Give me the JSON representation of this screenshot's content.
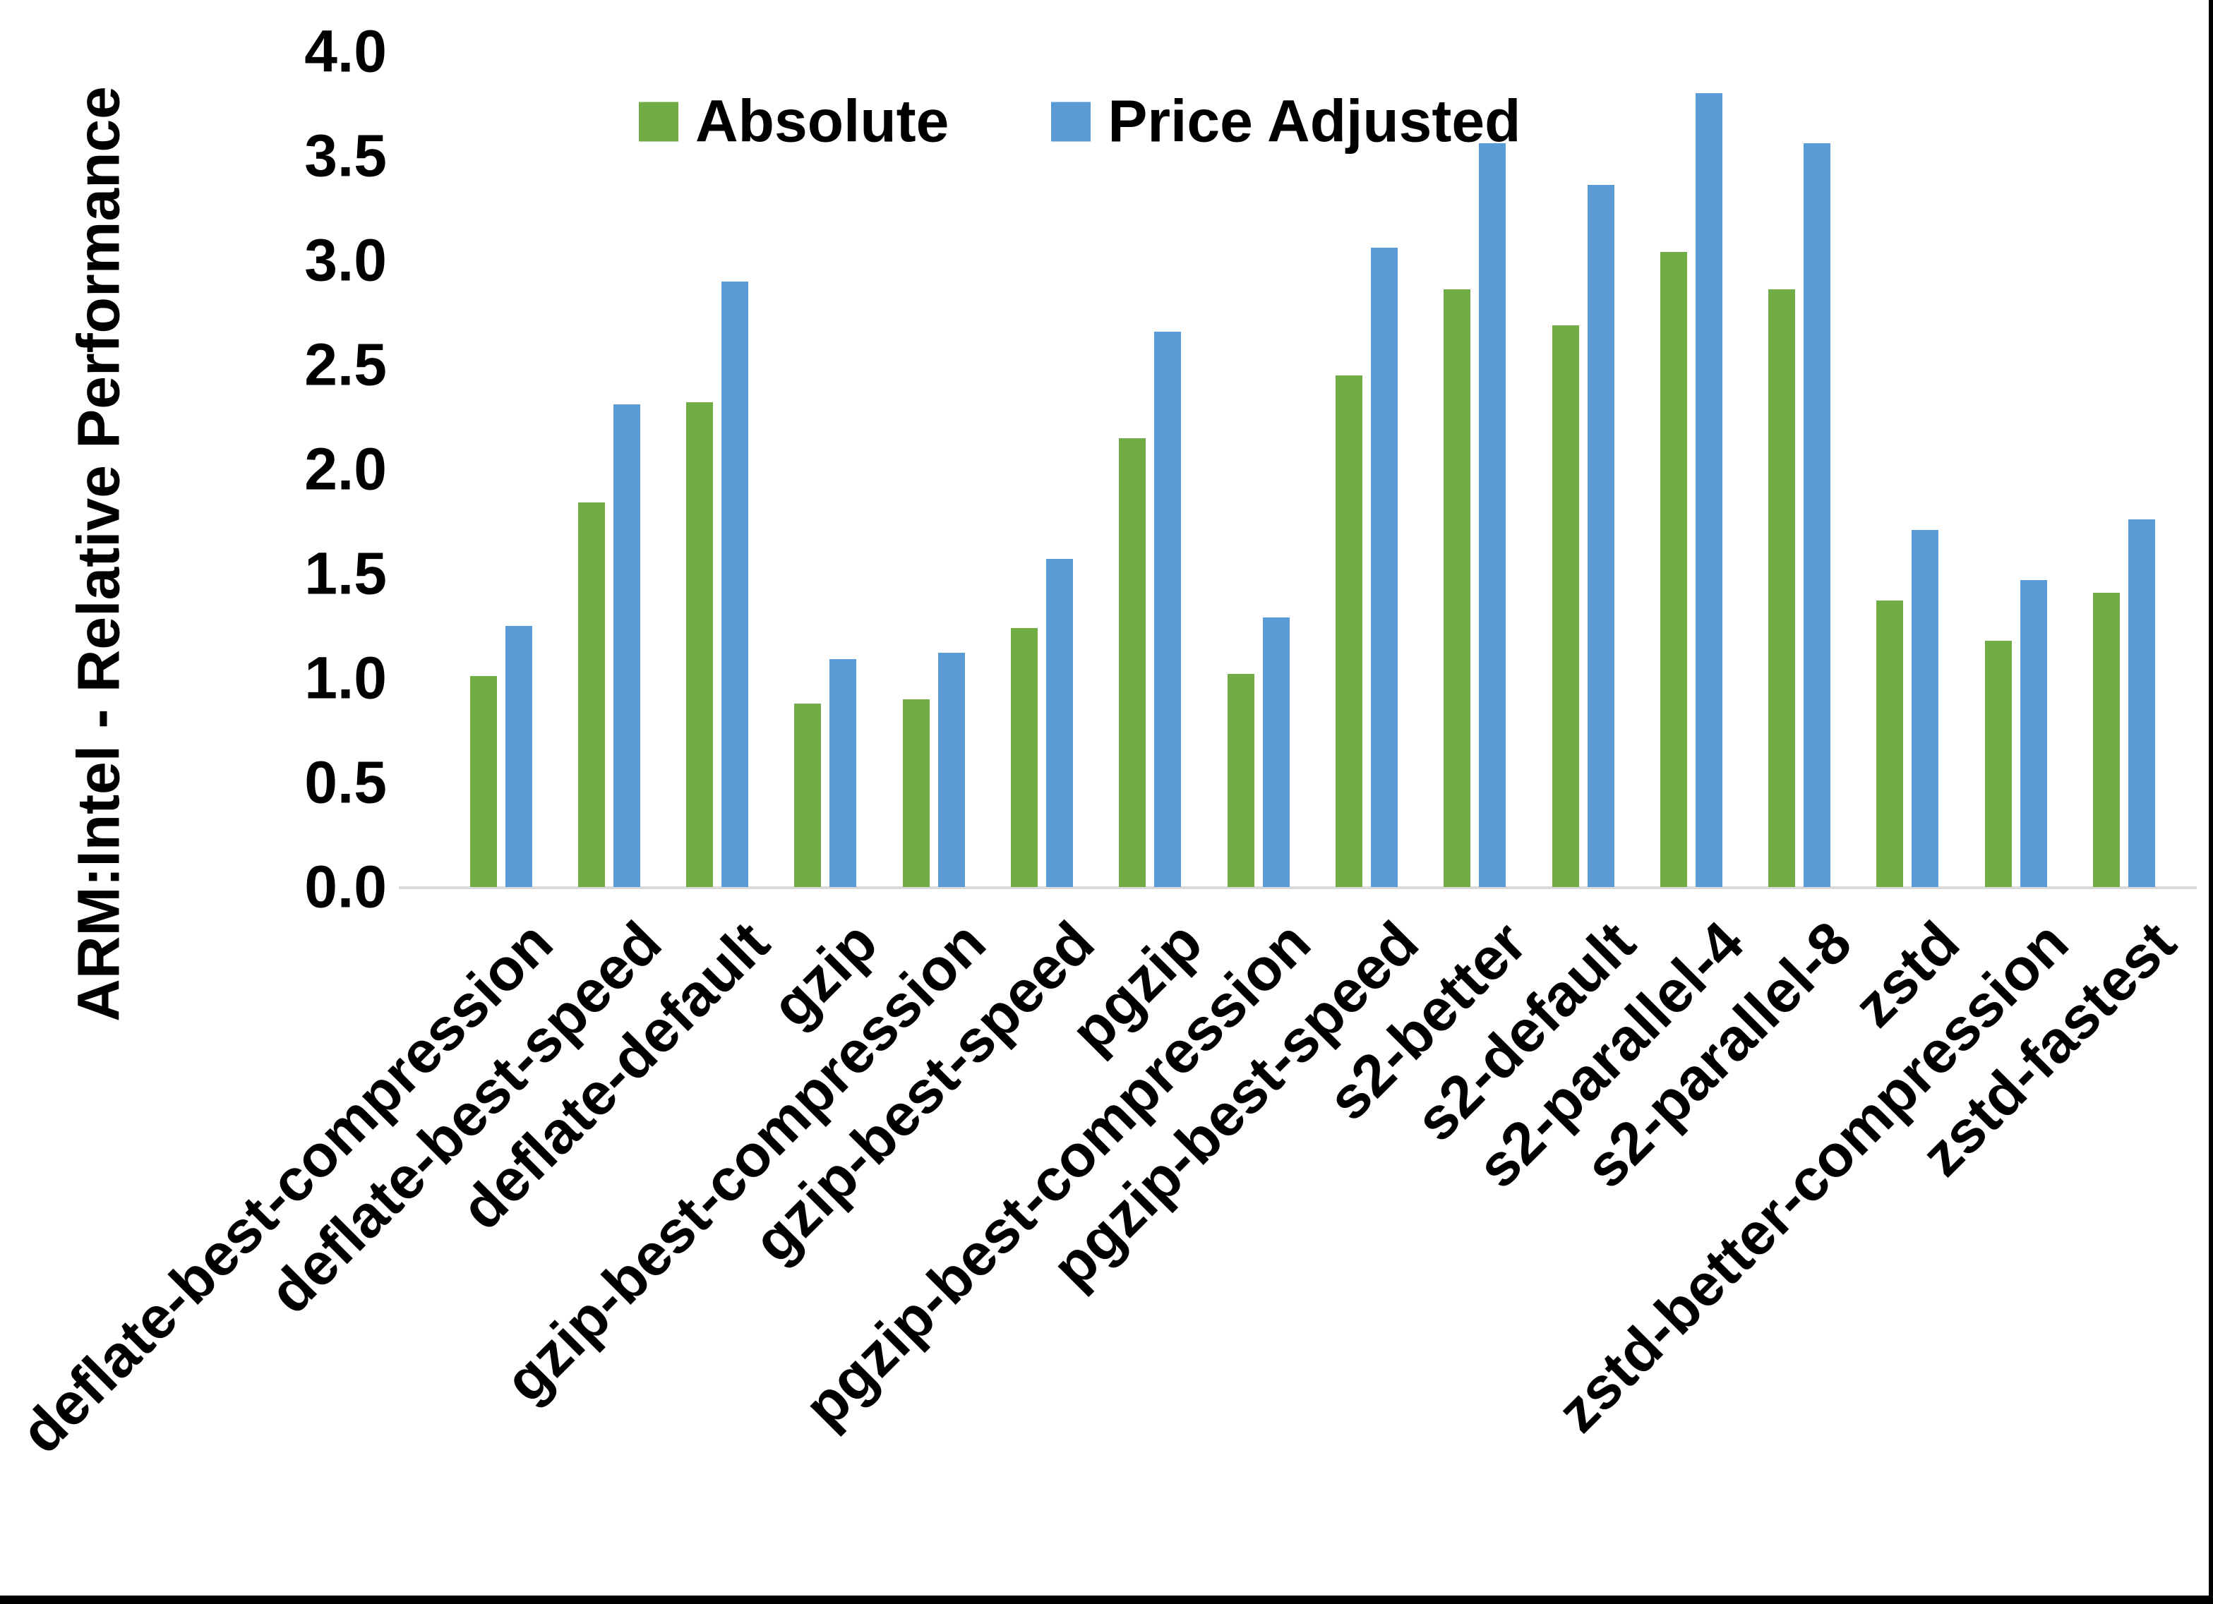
{
  "y_axis": {
    "title": "ARM:Intel - Relative Performance",
    "tick_labels": [
      "0.0",
      "0.5",
      "1.0",
      "1.5",
      "2.0",
      "2.5",
      "3.0",
      "3.5",
      "4.0"
    ],
    "min": 0.0,
    "max": 4.0,
    "step": 0.5
  },
  "legend": {
    "items": [
      {
        "label": "Absolute",
        "color": "#70AD47"
      },
      {
        "label": "Price Adjusted",
        "color": "#5B9BD5"
      }
    ],
    "position": "top-center"
  },
  "chart_data": {
    "type": "bar",
    "title": "",
    "xlabel": "",
    "ylabel": "ARM:Intel - Relative Performance",
    "ylim": [
      0,
      4.0
    ],
    "grid": false,
    "legend_position": "top-center",
    "categories": [
      "deflate-best-compression",
      "deflate-best-speed",
      "deflate-default",
      "gzip",
      "gzip-best-compression",
      "gzip-best-speed",
      "pgzip",
      "pgzip-best-compression",
      "pgzip-best-speed",
      "s2-better",
      "s2-default",
      "s2-parallel-4",
      "s2-parallel-8",
      "zstd",
      "zstd-better-compression",
      "zstd-fastest"
    ],
    "series": [
      {
        "name": "Absolute",
        "color": "#70AD47",
        "values": [
          1.01,
          1.84,
          2.32,
          0.88,
          0.9,
          1.24,
          2.15,
          1.02,
          2.45,
          2.86,
          2.69,
          3.04,
          2.86,
          1.37,
          1.18,
          1.41
        ]
      },
      {
        "name": "Price Adjusted",
        "color": "#5B9BD5",
        "values": [
          1.25,
          2.31,
          2.9,
          1.09,
          1.12,
          1.57,
          2.66,
          1.29,
          3.06,
          3.56,
          3.36,
          3.8,
          3.56,
          1.71,
          1.47,
          1.76
        ]
      }
    ]
  },
  "colors": {
    "background": "#FFFFFF",
    "axis_line": "#D9D9D9",
    "text": "#000000",
    "frame_border": "#000000",
    "series_absolute": "#70AD47",
    "series_price_adjusted": "#5B9BD5"
  }
}
